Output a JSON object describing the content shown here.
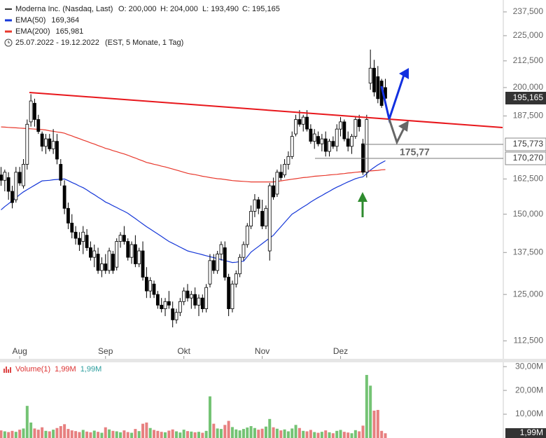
{
  "header": {
    "title": "Moderna Inc. (Nasdaq, Last)",
    "ohlc": [
      "O: 200,000",
      "H: 204,000",
      "L: 193,490",
      "C: 195,165"
    ],
    "period": "25.07.2022 - 19.12.2022",
    "period_info": "(EST, 5 Monate, 1 Tag)"
  },
  "annotations": {
    "level_text": "175,77",
    "last_price": "195,165"
  },
  "chart_data": [
    {
      "type": "candlestick",
      "log_scale": true,
      "up_color": "#ffffff",
      "down_color": "#000000",
      "categories": [
        null,
        null,
        null,
        null,
        null,
        "Aug",
        null,
        null,
        null,
        null,
        null,
        null,
        null,
        null,
        null,
        null,
        null,
        null,
        null,
        null,
        null,
        null,
        null,
        null,
        null,
        null,
        null,
        null,
        "Sep",
        null,
        null,
        null,
        null,
        null,
        null,
        null,
        null,
        null,
        null,
        null,
        null,
        null,
        null,
        null,
        null,
        null,
        null,
        null,
        null,
        "Okt",
        null,
        null,
        null,
        null,
        null,
        null,
        null,
        null,
        null,
        null,
        null,
        null,
        null,
        null,
        null,
        null,
        null,
        null,
        null,
        null,
        "Nov",
        null,
        null,
        null,
        null,
        null,
        null,
        null,
        null,
        null,
        null,
        null,
        null,
        null,
        null,
        null,
        null,
        null,
        null,
        null,
        null,
        "Dez",
        null,
        null,
        null,
        null,
        null,
        null,
        null,
        null,
        null,
        null,
        null,
        null
      ],
      "open": [
        164,
        162,
        163,
        158,
        155,
        165,
        160,
        168,
        185,
        193,
        186,
        180,
        175,
        178,
        174,
        177,
        168,
        160,
        152,
        147,
        144,
        142,
        141,
        143,
        139,
        136,
        137,
        132,
        134,
        132,
        137,
        133,
        141,
        143,
        141,
        136,
        140,
        134,
        138,
        130,
        126,
        128,
        125,
        122,
        121,
        123,
        121,
        118,
        120,
        123,
        126,
        124,
        125,
        122,
        124,
        121,
        128,
        135,
        132,
        137,
        139,
        130,
        121,
        128,
        131,
        136,
        140,
        146,
        151,
        155,
        151,
        146,
        138,
        160,
        157,
        165,
        164,
        168,
        171,
        180,
        186,
        184,
        187,
        182,
        177,
        179,
        176,
        178,
        173,
        177,
        175,
        182,
        185,
        178,
        175,
        179,
        186,
        176,
        165,
        202,
        209,
        205,
        203,
        200
      ],
      "high": [
        167,
        166,
        165,
        160,
        167,
        167,
        170,
        186,
        197,
        195,
        188,
        181,
        180,
        180,
        182,
        180,
        170,
        162,
        154,
        150,
        146,
        144,
        146,
        145,
        141,
        140,
        139,
        136,
        137,
        139,
        138,
        142,
        144,
        146,
        142,
        141,
        143,
        139,
        141,
        133,
        130,
        129,
        126,
        124,
        124,
        126,
        123,
        121,
        124,
        127,
        128,
        126,
        127,
        125,
        125,
        128,
        137,
        137,
        138,
        141,
        141,
        131,
        129,
        132,
        137,
        141,
        147,
        153,
        157,
        156,
        155,
        153,
        161,
        163,
        166,
        168,
        170,
        173,
        181,
        188,
        190,
        188,
        190,
        184,
        182,
        181,
        180,
        181,
        178,
        179,
        184,
        187,
        186,
        181,
        180,
        187,
        188,
        178,
        188,
        218,
        213,
        210,
        204,
        204
      ],
      "low": [
        160,
        158,
        155,
        152,
        154,
        160,
        159,
        166,
        183,
        183,
        180,
        173,
        172,
        173,
        172,
        168,
        160,
        150,
        145,
        142,
        140,
        138,
        137,
        138,
        135,
        133,
        131,
        130,
        131,
        131,
        131,
        132,
        139,
        140,
        135,
        134,
        133,
        133,
        129,
        124,
        124,
        124,
        121,
        120,
        119,
        121,
        116,
        117,
        119,
        122,
        123,
        121,
        121,
        119,
        120,
        120,
        127,
        131,
        131,
        135,
        129,
        119,
        120,
        127,
        130,
        135,
        139,
        145,
        149,
        150,
        145,
        145,
        135,
        155,
        156,
        162,
        163,
        166,
        170,
        179,
        183,
        181,
        181,
        176,
        174,
        175,
        173,
        171,
        171,
        174,
        173,
        179,
        177,
        173,
        172,
        178,
        181,
        164,
        163,
        199,
        196,
        193,
        191,
        193.49
      ],
      "close": [
        162,
        165,
        158,
        154,
        165,
        161,
        168,
        184,
        194,
        186,
        181,
        175,
        178,
        174,
        177,
        170,
        162,
        152,
        147,
        144,
        142,
        140,
        144,
        139,
        136,
        138,
        132,
        134,
        132,
        138,
        132,
        141,
        143,
        141,
        136,
        140,
        134,
        138,
        130,
        126,
        129,
        125,
        122,
        121,
        123,
        122,
        118,
        120,
        123,
        126,
        124,
        125,
        122,
        124,
        121,
        127,
        135,
        132,
        137,
        140,
        130,
        121,
        128,
        131,
        136,
        140,
        146,
        151,
        155,
        152,
        146,
        152,
        160,
        156,
        165,
        163,
        168,
        171,
        179,
        186,
        184,
        187,
        182,
        177,
        180,
        176,
        178,
        173,
        177,
        175,
        182,
        185,
        178,
        175,
        179,
        186,
        183,
        165,
        186,
        209,
        198,
        195,
        192,
        195.165
      ],
      "series": [
        {
          "name": "EMA(50)",
          "color": "#1537d8",
          "value_label": "169,364",
          "values": [
            151.5,
            152.6,
            153.6,
            154.7,
            155.7,
            156.8,
            157.8,
            158.6,
            159.4,
            160.2,
            161.0,
            161.8,
            161.9,
            162.0,
            162.2,
            162.3,
            162.4,
            162.5,
            161.9,
            161.2,
            160.6,
            159.9,
            159.3,
            158.5,
            157.6,
            156.8,
            155.9,
            155.1,
            154.2,
            153.6,
            152.9,
            152.3,
            151.6,
            151.0,
            150.3,
            149.4,
            148.5,
            147.6,
            146.7,
            145.8,
            145.0,
            144.2,
            143.4,
            142.6,
            141.8,
            141.0,
            140.4,
            139.8,
            139.2,
            138.6,
            138.0,
            137.7,
            137.4,
            137.1,
            136.8,
            136.5,
            136.2,
            135.9,
            135.6,
            135.3,
            135.0,
            134.7,
            134.4,
            134.5,
            134.7,
            134.8,
            136.2,
            137.6,
            138.5,
            139.4,
            140.3,
            141.2,
            142.1,
            143.0,
            144.4,
            145.8,
            147.2,
            148.6,
            150.0,
            150.8,
            151.7,
            152.5,
            153.3,
            154.2,
            155.0,
            155.8,
            156.5,
            157.3,
            158.0,
            158.8,
            159.5,
            160.1,
            160.8,
            161.4,
            162.0,
            162.6,
            163.0,
            163.3,
            164.5,
            165.8,
            166.8,
            167.8,
            168.6,
            169.364
          ]
        },
        {
          "name": "EMA(200)",
          "color": "#e8382c",
          "value_label": "165,981",
          "values": [
            182.9,
            182.8,
            182.7,
            182.6,
            182.5,
            182.4,
            182.3,
            182.2,
            182.1,
            182.0,
            181.9,
            181.8,
            181.6,
            181.3,
            181.1,
            180.8,
            180.6,
            180.3,
            179.7,
            179.2,
            178.6,
            178.1,
            177.5,
            177.0,
            176.4,
            175.9,
            175.3,
            174.8,
            174.2,
            173.8,
            173.3,
            172.9,
            172.4,
            172.0,
            171.5,
            170.9,
            170.4,
            169.8,
            169.3,
            168.7,
            168.4,
            168.0,
            167.7,
            167.3,
            167.0,
            166.6,
            166.2,
            165.8,
            165.4,
            165.0,
            164.6,
            164.3,
            164.1,
            163.8,
            163.5,
            163.3,
            163.0,
            162.8,
            162.6,
            162.5,
            162.3,
            162.1,
            161.9,
            161.8,
            161.7,
            161.6,
            161.5,
            161.4,
            161.4,
            161.4,
            161.4,
            161.4,
            161.4,
            161.4,
            161.6,
            161.8,
            162.0,
            162.2,
            162.4,
            162.6,
            162.8,
            163.0,
            163.1,
            163.3,
            163.5,
            163.6,
            163.7,
            163.8,
            164.0,
            164.1,
            164.2,
            164.4,
            164.5,
            164.7,
            164.8,
            165.0,
            165.1,
            165.2,
            165.4,
            165.5,
            165.6,
            165.7,
            165.9,
            165.981
          ]
        }
      ],
      "levels": [
        {
          "value": 175.773,
          "label": "175,773"
        },
        {
          "value": 170.27,
          "label": "170,270"
        }
      ],
      "ylim": [
        108,
        244
      ],
      "yticks": [
        {
          "value": 112.5,
          "label": "112,500"
        },
        {
          "value": 125,
          "label": "125,000"
        },
        {
          "value": 137.5,
          "label": "137,500"
        },
        {
          "value": 150,
          "label": "150,000"
        },
        {
          "value": 162.5,
          "label": "162,500"
        },
        {
          "value": 187.5,
          "label": "187,500"
        },
        {
          "value": 200,
          "label": "200,000"
        },
        {
          "value": 212.5,
          "label": "212,500"
        },
        {
          "value": 225,
          "label": "225,000"
        },
        {
          "value": 237.5,
          "label": "237,500"
        }
      ]
    },
    {
      "type": "bar",
      "title": "Volume(1)",
      "legend_values": [
        "1,99M",
        "1,99M"
      ],
      "last_label": "1,99M",
      "up_color": "#5cb85c",
      "down_color": "#e36a6a",
      "values": [
        3.2,
        2.8,
        2.5,
        3.0,
        2.6,
        3.5,
        4.0,
        13.5,
        6.5,
        4.0,
        3.5,
        4.5,
        3.0,
        2.8,
        3.5,
        4.2,
        5.0,
        5.8,
        3.8,
        3.2,
        2.9,
        2.5,
        3.4,
        2.7,
        2.4,
        3.1,
        2.6,
        2.2,
        4.5,
        3.6,
        3.0,
        2.8,
        2.4,
        3.2,
        2.5,
        2.2,
        3.8,
        2.9,
        6.0,
        6.5,
        4.2,
        3.4,
        3.0,
        2.6,
        2.4,
        3.1,
        3.6,
        2.8,
        2.3,
        3.5,
        2.9,
        2.7,
        2.4,
        2.6,
        2.2,
        3.0,
        17.5,
        6.0,
        4.0,
        3.8,
        5.5,
        7.2,
        4.6,
        3.6,
        3.2,
        3.8,
        4.4,
        5.0,
        4.2,
        3.5,
        3.9,
        4.8,
        8.0,
        4.5,
        3.9,
        3.2,
        3.6,
        2.8,
        4.0,
        5.5,
        4.2,
        3.0,
        2.8,
        3.4,
        2.5,
        2.2,
        2.6,
        3.2,
        2.4,
        2.0,
        3.0,
        3.4,
        2.6,
        2.3,
        2.0,
        3.3,
        2.8,
        5.2,
        26.5,
        22.0,
        11.5,
        11.8,
        3.0,
        1.99
      ],
      "ylim": [
        0,
        32.4
      ],
      "yticks": [
        {
          "value": 10,
          "label": "10,00M"
        },
        {
          "value": 20,
          "label": "20,00M"
        },
        {
          "value": 30,
          "label": "30,00M"
        }
      ]
    }
  ]
}
